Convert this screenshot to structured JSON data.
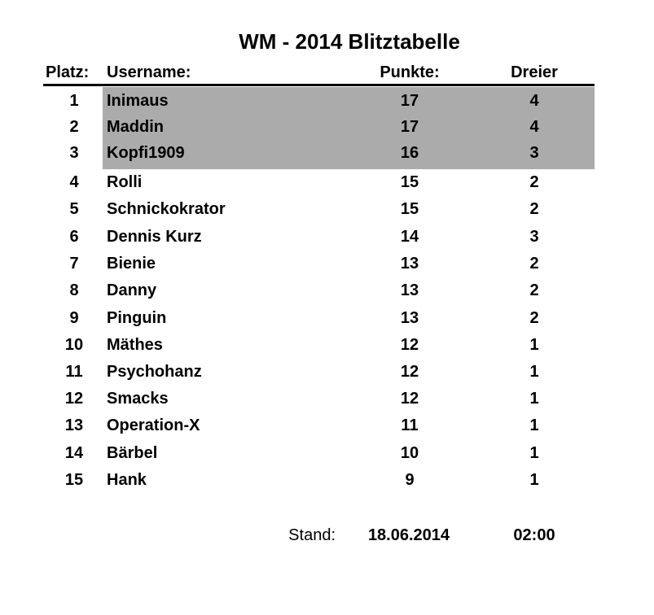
{
  "title": "WM - 2014 Blitztabelle",
  "headers": {
    "platz": "Platz:",
    "username": "Username:",
    "punkte": "Punkte:",
    "dreier": "Dreier"
  },
  "highlight_color": "#ababab",
  "rows": [
    {
      "platz": "1",
      "username": "Inimaus",
      "punkte": "17",
      "dreier": "4"
    },
    {
      "platz": "2",
      "username": "Maddin",
      "punkte": "17",
      "dreier": "4"
    },
    {
      "platz": "3",
      "username": "Kopfi1909",
      "punkte": "16",
      "dreier": "3"
    },
    {
      "platz": "4",
      "username": "Rolli",
      "punkte": "15",
      "dreier": "2"
    },
    {
      "platz": "5",
      "username": "Schnickokrator",
      "punkte": "15",
      "dreier": "2"
    },
    {
      "platz": "6",
      "username": "Dennis Kurz",
      "punkte": "14",
      "dreier": "3"
    },
    {
      "platz": "7",
      "username": "Bienie",
      "punkte": "13",
      "dreier": "2"
    },
    {
      "platz": "8",
      "username": "Danny",
      "punkte": "13",
      "dreier": "2"
    },
    {
      "platz": "9",
      "username": "Pinguin",
      "punkte": "13",
      "dreier": "2"
    },
    {
      "platz": "10",
      "username": "Mäthes",
      "punkte": "12",
      "dreier": "1"
    },
    {
      "platz": "11",
      "username": "Psychohanz",
      "punkte": "12",
      "dreier": "1"
    },
    {
      "platz": "12",
      "username": "Smacks",
      "punkte": "12",
      "dreier": "1"
    },
    {
      "platz": "13",
      "username": "Operation-X",
      "punkte": "11",
      "dreier": "1"
    },
    {
      "platz": "14",
      "username": "Bärbel",
      "punkte": "10",
      "dreier": "1"
    },
    {
      "platz": "15",
      "username": "Hank",
      "punkte": "9",
      "dreier": "1"
    }
  ],
  "footer": {
    "label": "Stand:",
    "date": "18.06.2014",
    "time": "02:00"
  }
}
